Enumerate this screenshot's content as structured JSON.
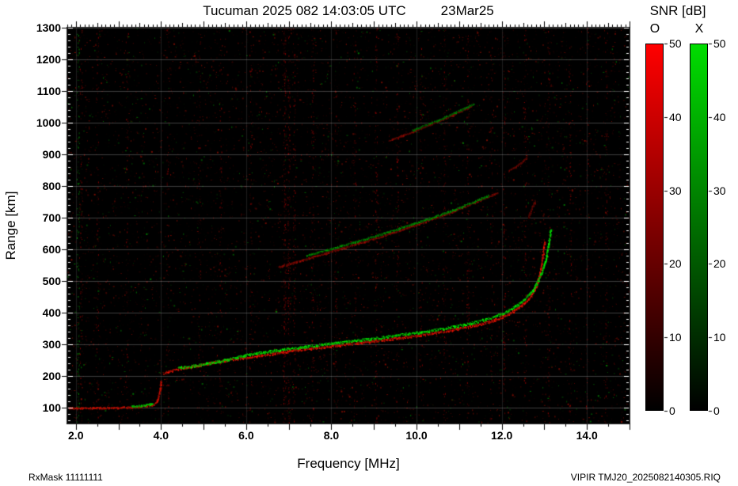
{
  "title": {
    "main": "Tucuman 2025 082 14:03:05 UTC",
    "date": "23Mar25"
  },
  "footer": {
    "left": "RxMask 11111111",
    "right": "VIPIR  TMJ20_2025082140305.RIQ"
  },
  "axes": {
    "x": {
      "label": "Frequency [MHz]",
      "range": [
        1.8,
        15.0
      ],
      "major_ticks": [
        {
          "v": 2,
          "label": "2.0"
        },
        {
          "v": 4,
          "label": "4.0"
        },
        {
          "v": 6,
          "label": "6.0"
        },
        {
          "v": 8,
          "label": "8.0"
        },
        {
          "v": 10,
          "label": "10.0"
        },
        {
          "v": 12,
          "label": "12.0"
        },
        {
          "v": 14,
          "label": "14.0"
        }
      ]
    },
    "y": {
      "label": "Range [km]",
      "range": [
        50,
        1300
      ],
      "major_ticks": [
        {
          "v": 100,
          "label": "100"
        },
        {
          "v": 200,
          "label": "200"
        },
        {
          "v": 300,
          "label": "300"
        },
        {
          "v": 400,
          "label": "400"
        },
        {
          "v": 500,
          "label": "500"
        },
        {
          "v": 600,
          "label": "600"
        },
        {
          "v": 700,
          "label": "700"
        },
        {
          "v": 800,
          "label": "800"
        },
        {
          "v": 900,
          "label": "900"
        },
        {
          "v": 1000,
          "label": "1000"
        },
        {
          "v": 1100,
          "label": "1100"
        },
        {
          "v": 1200,
          "label": "1200"
        },
        {
          "v": 1300,
          "label": "1300"
        }
      ]
    }
  },
  "colorbar": {
    "title": "SNR [dB]",
    "range": [
      0,
      50
    ],
    "ticks": [
      {
        "v": 0,
        "label": "0"
      },
      {
        "v": 10,
        "label": "10"
      },
      {
        "v": 20,
        "label": "20"
      },
      {
        "v": 30,
        "label": "30"
      },
      {
        "v": 40,
        "label": "40"
      },
      {
        "v": 50,
        "label": "50"
      }
    ],
    "bars": [
      {
        "label": "O",
        "color": "#ff0000"
      },
      {
        "label": "X",
        "color": "#00dd00"
      }
    ]
  },
  "chart_data": {
    "type": "heatmap",
    "title": "Tucuman 2025 082 14:03:05 UTC 23Mar25 ionogram",
    "xlabel": "Frequency [MHz]",
    "ylabel": "Range [km]",
    "x_range": [
      1.8,
      15.0
    ],
    "y_range": [
      50,
      1300
    ],
    "background": "#000000",
    "grid": {
      "x_step_mhz": 2,
      "y_step_km": 100
    },
    "noise": {
      "seed": 1234567,
      "count": 9000,
      "green_fraction": 0.18
    },
    "rfi_columns": [
      {
        "f": 2.05,
        "channel": "X",
        "strength": 0.55
      },
      {
        "f": 2.12,
        "channel": "O",
        "strength": 0.3
      },
      {
        "f": 2.5,
        "channel": "O",
        "strength": 0.3
      },
      {
        "f": 3.2,
        "channel": "O",
        "strength": 0.25
      },
      {
        "f": 4.15,
        "channel": "O",
        "strength": 0.2
      },
      {
        "f": 4.9,
        "channel": "O",
        "strength": 0.25
      },
      {
        "f": 5.4,
        "channel": "O",
        "strength": 0.3
      },
      {
        "f": 6.1,
        "channel": "O",
        "strength": 0.25
      },
      {
        "f": 6.9,
        "channel": "O",
        "strength": 0.85
      },
      {
        "f": 7.0,
        "channel": "O",
        "strength": 0.6
      },
      {
        "f": 7.12,
        "channel": "O",
        "strength": 0.45
      },
      {
        "f": 7.55,
        "channel": "O",
        "strength": 0.35
      },
      {
        "f": 8.1,
        "channel": "O",
        "strength": 0.3
      },
      {
        "f": 8.55,
        "channel": "O",
        "strength": 0.25
      },
      {
        "f": 9.05,
        "channel": "O",
        "strength": 0.4
      },
      {
        "f": 9.55,
        "channel": "O",
        "strength": 0.3
      },
      {
        "f": 10.1,
        "channel": "O",
        "strength": 0.25
      },
      {
        "f": 10.65,
        "channel": "O",
        "strength": 0.4
      },
      {
        "f": 11.2,
        "channel": "O",
        "strength": 0.35
      },
      {
        "f": 11.75,
        "channel": "O",
        "strength": 0.25
      },
      {
        "f": 12.05,
        "channel": "O",
        "strength": 0.4
      },
      {
        "f": 12.55,
        "channel": "O",
        "strength": 0.25
      },
      {
        "f": 13.1,
        "channel": "O",
        "strength": 0.3
      },
      {
        "f": 13.6,
        "channel": "O",
        "strength": 0.3
      },
      {
        "f": 14.0,
        "channel": "O",
        "strength": 0.25
      },
      {
        "f": 14.45,
        "channel": "O",
        "strength": 0.3
      }
    ],
    "series": [
      {
        "name": "E-trace-O",
        "channel": "O",
        "width": 2,
        "i0": 120,
        "i1": 230,
        "points": [
          [
            1.82,
            97
          ],
          [
            2.2,
            97
          ],
          [
            2.6,
            98
          ],
          [
            3.0,
            99
          ],
          [
            3.3,
            100
          ],
          [
            3.55,
            102
          ],
          [
            3.7,
            104
          ],
          [
            3.8,
            107
          ],
          [
            3.88,
            113
          ],
          [
            3.93,
            128
          ],
          [
            3.97,
            155
          ],
          [
            4.0,
            185
          ]
        ]
      },
      {
        "name": "E-trace-X",
        "channel": "X",
        "width": 2,
        "i0": 150,
        "i1": 240,
        "points": [
          [
            3.3,
            103
          ],
          [
            3.45,
            104
          ],
          [
            3.6,
            106
          ],
          [
            3.72,
            109
          ],
          [
            3.8,
            113
          ]
        ]
      },
      {
        "name": "F-trace-O",
        "channel": "O",
        "width": 3,
        "i0": 140,
        "i1": 255,
        "points": [
          [
            4.05,
            206
          ],
          [
            4.3,
            216
          ],
          [
            4.6,
            224
          ],
          [
            5.0,
            234
          ],
          [
            5.5,
            246
          ],
          [
            6.0,
            256
          ],
          [
            6.5,
            266
          ],
          [
            7.0,
            275
          ],
          [
            7.5,
            284
          ],
          [
            8.0,
            292
          ],
          [
            8.5,
            300
          ],
          [
            9.0,
            308
          ],
          [
            9.5,
            316
          ],
          [
            10.0,
            325
          ],
          [
            10.5,
            335
          ],
          [
            11.0,
            347
          ],
          [
            11.4,
            358
          ],
          [
            11.8,
            373
          ],
          [
            12.1,
            390
          ],
          [
            12.35,
            408
          ],
          [
            12.55,
            430
          ],
          [
            12.7,
            455
          ],
          [
            12.8,
            482
          ],
          [
            12.88,
            515
          ],
          [
            12.93,
            550
          ],
          [
            12.97,
            590
          ],
          [
            13.0,
            625
          ]
        ]
      },
      {
        "name": "F-trace-X",
        "channel": "X",
        "width": 3,
        "i0": 150,
        "i1": 255,
        "points": [
          [
            4.4,
            222
          ],
          [
            4.8,
            230
          ],
          [
            5.2,
            240
          ],
          [
            5.6,
            250
          ],
          [
            6.0,
            264
          ],
          [
            6.5,
            274
          ],
          [
            7.0,
            283
          ],
          [
            7.5,
            292
          ],
          [
            8.0,
            300
          ],
          [
            8.5,
            308
          ],
          [
            9.0,
            316
          ],
          [
            9.5,
            325
          ],
          [
            10.0,
            334
          ],
          [
            10.5,
            344
          ],
          [
            11.0,
            356
          ],
          [
            11.4,
            368
          ],
          [
            11.8,
            383
          ],
          [
            12.1,
            400
          ],
          [
            12.35,
            420
          ],
          [
            12.55,
            442
          ],
          [
            12.72,
            468
          ],
          [
            12.85,
            498
          ],
          [
            12.95,
            530
          ],
          [
            13.03,
            565
          ],
          [
            13.08,
            600
          ],
          [
            13.12,
            640
          ],
          [
            13.14,
            660
          ]
        ]
      },
      {
        "name": "second-hop-O",
        "channel": "O",
        "width": 2,
        "i0": 70,
        "i1": 160,
        "points": [
          [
            6.75,
            542
          ],
          [
            7.2,
            560
          ],
          [
            7.65,
            578
          ],
          [
            8.1,
            596
          ],
          [
            8.55,
            614
          ],
          [
            9.0,
            632
          ],
          [
            9.45,
            652
          ],
          [
            9.9,
            672
          ],
          [
            10.35,
            694
          ],
          [
            10.8,
            716
          ],
          [
            11.2,
            738
          ],
          [
            11.6,
            760
          ],
          [
            11.9,
            778
          ]
        ]
      },
      {
        "name": "second-hop-X",
        "channel": "X",
        "width": 2,
        "i0": 70,
        "i1": 160,
        "points": [
          [
            7.4,
            578
          ],
          [
            7.85,
            595
          ],
          [
            8.3,
            612
          ],
          [
            8.75,
            630
          ],
          [
            9.2,
            648
          ],
          [
            9.65,
            667
          ],
          [
            10.1,
            687
          ],
          [
            10.55,
            708
          ],
          [
            11.0,
            730
          ],
          [
            11.35,
            750
          ],
          [
            11.7,
            770
          ]
        ]
      },
      {
        "name": "second-hop-tail-O",
        "channel": "O",
        "width": 2,
        "i0": 60,
        "i1": 130,
        "points": [
          [
            12.15,
            845
          ],
          [
            12.35,
            862
          ],
          [
            12.5,
            878
          ],
          [
            12.6,
            892
          ]
        ]
      },
      {
        "name": "spread-echo-O",
        "channel": "O",
        "width": 2,
        "i0": 60,
        "i1": 120,
        "points": [
          [
            12.62,
            700
          ],
          [
            12.7,
            728
          ],
          [
            12.78,
            752
          ]
        ]
      },
      {
        "name": "third-hop-O",
        "channel": "O",
        "width": 2,
        "i0": 60,
        "i1": 140,
        "points": [
          [
            9.35,
            942
          ],
          [
            9.75,
            962
          ],
          [
            10.15,
            984
          ],
          [
            10.55,
            1006
          ],
          [
            10.95,
            1030
          ],
          [
            11.3,
            1052
          ]
        ]
      },
      {
        "name": "third-hop-X",
        "channel": "X",
        "width": 2,
        "i0": 60,
        "i1": 140,
        "points": [
          [
            9.9,
            975
          ],
          [
            10.3,
            996
          ],
          [
            10.7,
            1018
          ],
          [
            11.05,
            1040
          ],
          [
            11.35,
            1058
          ]
        ]
      }
    ]
  }
}
